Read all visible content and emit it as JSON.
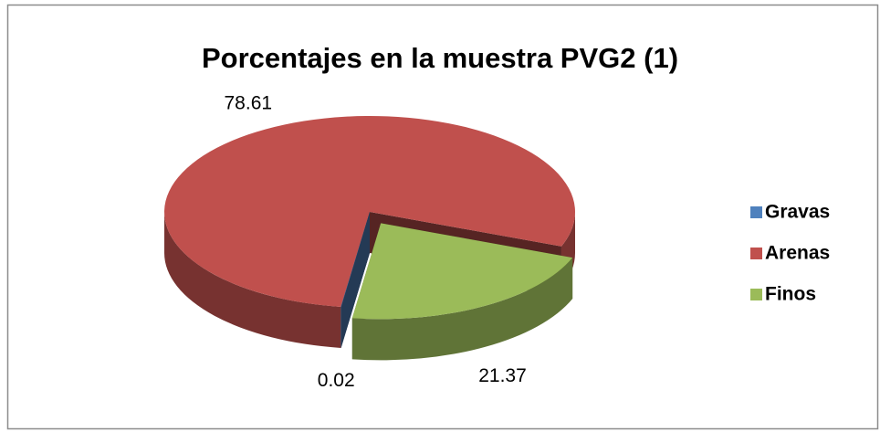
{
  "chart_data": {
    "type": "pie",
    "title": "Porcentajes en la muestra PVG2 (1)",
    "categories": [
      "Gravas",
      "Arenas",
      "Finos"
    ],
    "values": [
      0.02,
      78.61,
      21.37
    ],
    "colors": [
      "#4f81bd",
      "#c0504d",
      "#9bbb59"
    ],
    "legend": "right"
  }
}
